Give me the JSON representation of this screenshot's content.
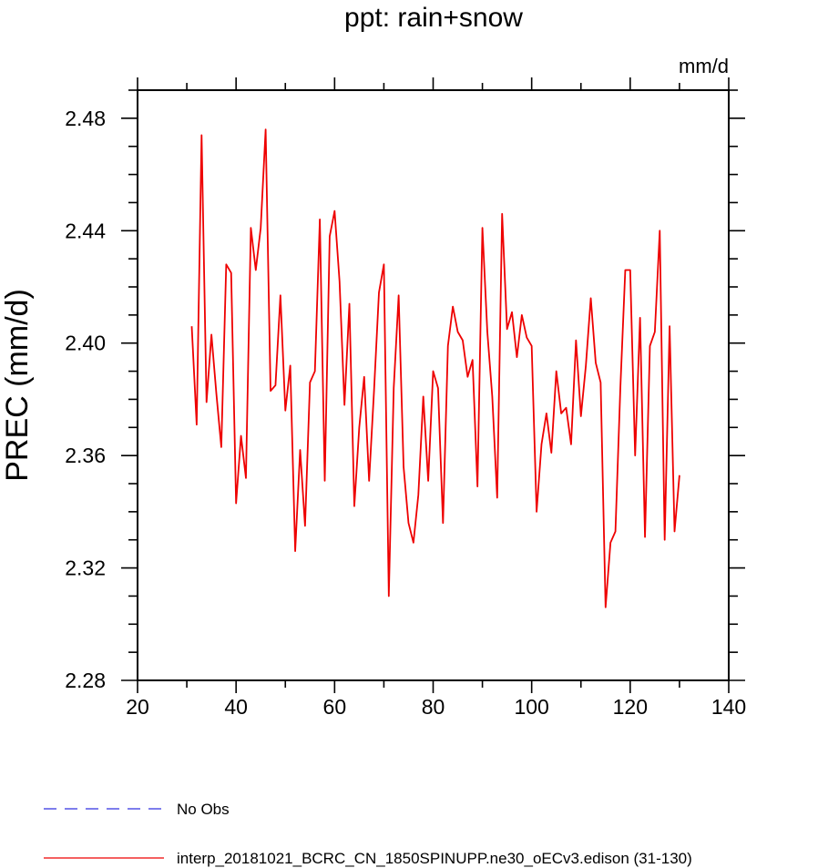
{
  "chart_data": {
    "type": "line",
    "title": "ppt: rain+snow",
    "units_label": "mm/d",
    "ylabel": "PREC  (mm/d)",
    "xlabel": "",
    "xlim": [
      20,
      140
    ],
    "ylim": [
      2.28,
      2.49
    ],
    "xticks": [
      20,
      40,
      60,
      80,
      100,
      120,
      140
    ],
    "yticks": [
      2.28,
      2.32,
      2.36,
      2.4,
      2.44,
      2.48
    ],
    "xtick_labels": [
      "20",
      "40",
      "60",
      "80",
      "100",
      "120",
      "140"
    ],
    "ytick_labels": [
      "2.28",
      "2.32",
      "2.36",
      "2.40",
      "2.44",
      "2.48"
    ],
    "grid": false,
    "legend_position": "bottom",
    "series": [
      {
        "name": "No Obs",
        "color": "#3030e0",
        "dash": "dashed",
        "x": [],
        "y": []
      },
      {
        "name": "interp_20181021_BCRC_CN_1850SPINUPP.ne30_oECv3.edison (31-130)",
        "color": "#ee0000",
        "dash": "solid",
        "x": [
          31,
          32,
          33,
          34,
          35,
          36,
          37,
          38,
          39,
          40,
          41,
          42,
          43,
          44,
          45,
          46,
          47,
          48,
          49,
          50,
          51,
          52,
          53,
          54,
          55,
          56,
          57,
          58,
          59,
          60,
          61,
          62,
          63,
          64,
          65,
          66,
          67,
          68,
          69,
          70,
          71,
          72,
          73,
          74,
          75,
          76,
          77,
          78,
          79,
          80,
          81,
          82,
          83,
          84,
          85,
          86,
          87,
          88,
          89,
          90,
          91,
          92,
          93,
          94,
          95,
          96,
          97,
          98,
          99,
          100,
          101,
          102,
          103,
          104,
          105,
          106,
          107,
          108,
          109,
          110,
          111,
          112,
          113,
          114,
          115,
          116,
          117,
          118,
          119,
          120,
          121,
          122,
          123,
          124,
          125,
          126,
          127,
          128,
          129,
          130
        ],
        "y": [
          2.406,
          2.371,
          2.474,
          2.379,
          2.403,
          2.382,
          2.363,
          2.428,
          2.425,
          2.343,
          2.367,
          2.352,
          2.441,
          2.426,
          2.441,
          2.476,
          2.383,
          2.385,
          2.417,
          2.376,
          2.392,
          2.326,
          2.362,
          2.335,
          2.386,
          2.39,
          2.444,
          2.351,
          2.438,
          2.447,
          2.422,
          2.378,
          2.414,
          2.342,
          2.37,
          2.388,
          2.351,
          2.383,
          2.418,
          2.428,
          2.31,
          2.384,
          2.417,
          2.356,
          2.336,
          2.329,
          2.346,
          2.381,
          2.351,
          2.39,
          2.384,
          2.336,
          2.399,
          2.413,
          2.404,
          2.401,
          2.388,
          2.394,
          2.349,
          2.441,
          2.404,
          2.381,
          2.345,
          2.446,
          2.405,
          2.411,
          2.395,
          2.41,
          2.402,
          2.399,
          2.34,
          2.364,
          2.375,
          2.361,
          2.39,
          2.375,
          2.377,
          2.364,
          2.401,
          2.374,
          2.392,
          2.416,
          2.393,
          2.386,
          2.306,
          2.329,
          2.333,
          2.384,
          2.426,
          2.426,
          2.36,
          2.409,
          2.331,
          2.399,
          2.404,
          2.44,
          2.33,
          2.406,
          2.333,
          2.353
        ]
      }
    ]
  }
}
